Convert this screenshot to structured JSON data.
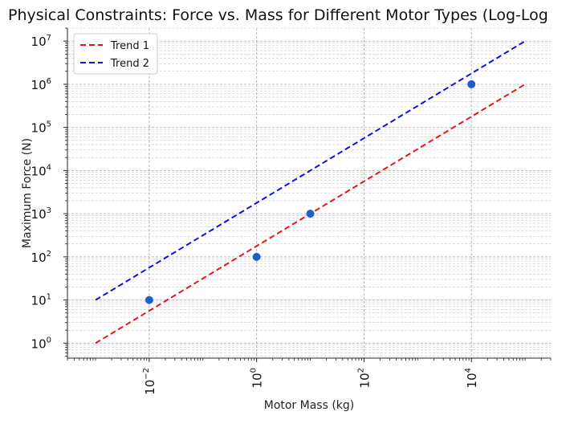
{
  "chart_data": {
    "type": "scatter",
    "title": "Physical Constraints: Force vs. Mass for Different Motor Types (Log-Log",
    "xlabel": "Motor Mass (kg)",
    "ylabel": "Maximum Force (N)",
    "xscale": "log",
    "yscale": "log",
    "xlim": [
      0.0003,
      300000
    ],
    "ylim": [
      0.45,
      20000000
    ],
    "x_ticks": [
      0.01,
      1,
      100,
      10000
    ],
    "x_tick_labels": [
      {
        "base": "10",
        "exp": "−2"
      },
      {
        "base": "10",
        "exp": "0"
      },
      {
        "base": "10",
        "exp": "2"
      },
      {
        "base": "10",
        "exp": "4"
      }
    ],
    "y_ticks": [
      1,
      10,
      100,
      1000,
      10000,
      100000,
      1000000,
      10000000
    ],
    "y_tick_labels": [
      {
        "base": "10",
        "exp": "0"
      },
      {
        "base": "10",
        "exp": "1"
      },
      {
        "base": "10",
        "exp": "2"
      },
      {
        "base": "10",
        "exp": "3"
      },
      {
        "base": "10",
        "exp": "4"
      },
      {
        "base": "10",
        "exp": "5"
      },
      {
        "base": "10",
        "exp": "6"
      },
      {
        "base": "10",
        "exp": "7"
      }
    ],
    "grid": "both, major and minor",
    "legend_position": "top-left",
    "points": [
      {
        "x": 0.01,
        "y": 10
      },
      {
        "x": 1,
        "y": 100
      },
      {
        "x": 10,
        "y": 1000
      },
      {
        "x": 10000,
        "y": 1000000
      }
    ],
    "point_color": "#1f5fcc",
    "series": [
      {
        "name": "Trend 1",
        "color": "#e8141c",
        "style": "dashed",
        "x": [
          0.001,
          100000
        ],
        "y": [
          1,
          1000000
        ]
      },
      {
        "name": "Trend 2",
        "color": "#1010e0",
        "style": "dashed",
        "x": [
          0.001,
          100000
        ],
        "y": [
          10,
          10000000
        ]
      }
    ]
  }
}
